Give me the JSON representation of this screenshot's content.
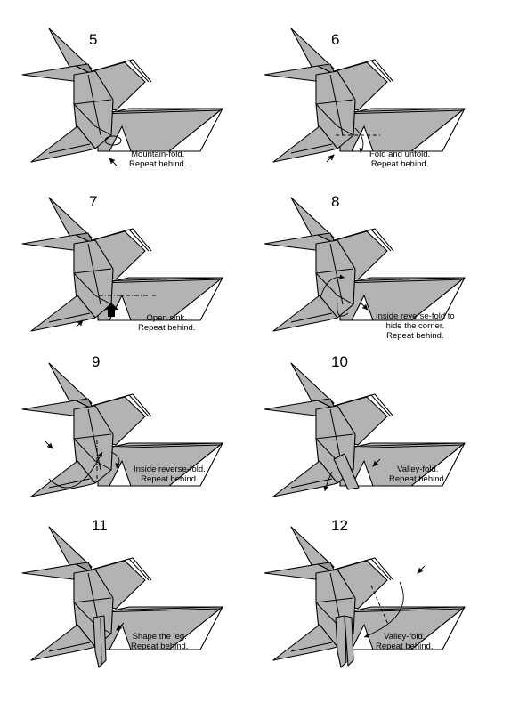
{
  "steps": [
    {
      "number": "5",
      "caption": [
        "Mountain-fold.",
        "Repeat behind."
      ]
    },
    {
      "number": "6",
      "caption": [
        "Fold and unfold.",
        "Repeat behind."
      ]
    },
    {
      "number": "7",
      "caption": [
        "Open sink.",
        "Repeat behind."
      ]
    },
    {
      "number": "8",
      "caption": [
        "Inside reverse-fold to",
        "hide the corner.",
        "Repeat behind."
      ]
    },
    {
      "number": "9",
      "caption": [
        "Inside reverse-fold.",
        "Repeat behind."
      ]
    },
    {
      "number": "10",
      "caption": [
        "Valley-fold.",
        "Repeat behind."
      ]
    },
    {
      "number": "11",
      "caption": [
        "Shape the leg.",
        "Repeat behind."
      ]
    },
    {
      "number": "12",
      "caption": [
        "Valley-fold.",
        "Repeat behind."
      ]
    }
  ],
  "colors": {
    "paper": "#b3b3b3",
    "paper_shadow": "#9a9a9a",
    "outline": "#000000",
    "background": "#ffffff"
  }
}
